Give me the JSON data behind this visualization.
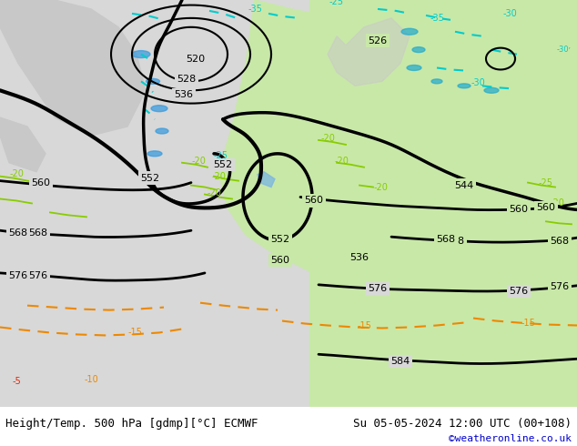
{
  "title_left": "Height/Temp. 500 hPa [gdmp][°C] ECMWF",
  "title_right": "Su 05-05-2024 12:00 UTC (00+108)",
  "credit": "©weatheronline.co.uk",
  "bg_color": "#ffffff",
  "map_bg_green": "#c8e8b0",
  "map_bg_gray": "#d0d0d0",
  "map_ocean": "#e8e8e8",
  "text_color": "#000000",
  "credit_color": "#0000cc",
  "fig_width": 6.34,
  "fig_height": 4.9,
  "dpi": 100
}
